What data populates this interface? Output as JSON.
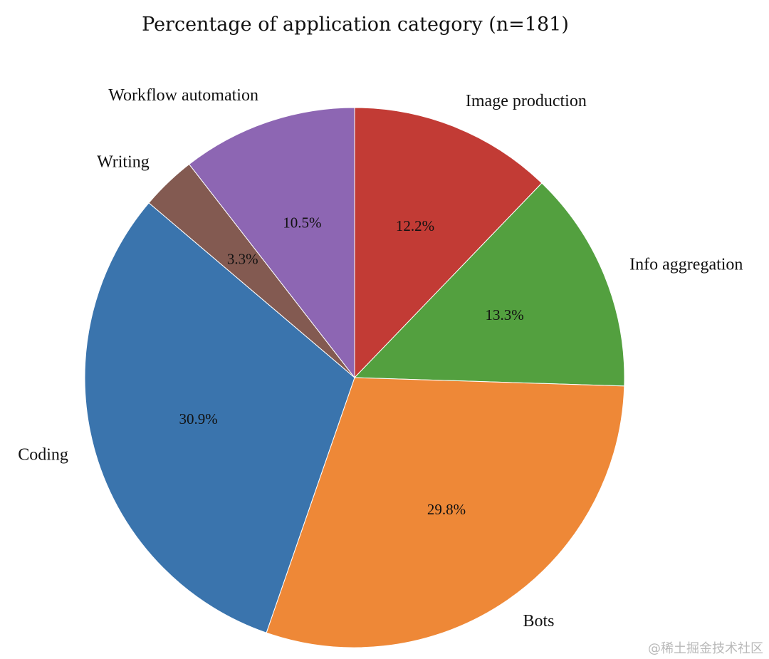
{
  "chart_data": {
    "type": "pie",
    "title": "Percentage of application category (n=181)",
    "categories": [
      "Image production",
      "Info aggregation",
      "Bots",
      "Coding",
      "Writing",
      "Workflow automation"
    ],
    "values": [
      12.2,
      13.3,
      29.8,
      30.9,
      3.3,
      10.5
    ],
    "value_labels": [
      "12.2%",
      "13.3%",
      "29.8%",
      "30.9%",
      "3.3%",
      "10.5%"
    ],
    "colors": [
      "#c23b35",
      "#53a03f",
      "#ee8837",
      "#3a74ad",
      "#835a51",
      "#8d66b3"
    ],
    "start_angle_deg": 90,
    "direction": "clockwise",
    "legend": "none"
  },
  "watermark": "@稀土掘金技术社区"
}
